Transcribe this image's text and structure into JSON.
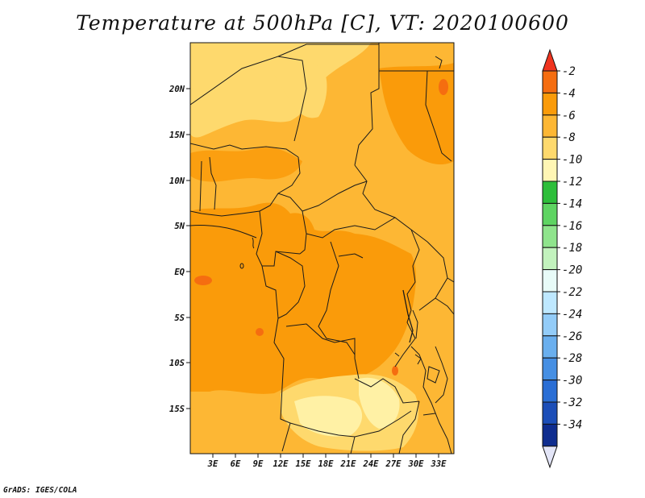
{
  "title": "Temperature at 500hPa [C], VT: 2020100600",
  "credit": "GrADS: IGES/COLA",
  "lat_labels": [
    "20N",
    "15N",
    "10N",
    "5N",
    "EQ",
    "5S",
    "10S",
    "15S"
  ],
  "lon_labels": [
    "3E",
    "6E",
    "9E",
    "12E",
    "15E",
    "18E",
    "21E",
    "24E",
    "27E",
    "30E",
    "33E"
  ],
  "colorbar": {
    "labels": [
      "-2",
      "-4",
      "-6",
      "-8",
      "-10",
      "-12",
      "-14",
      "-16",
      "-18",
      "-20",
      "-22",
      "-24",
      "-26",
      "-28",
      "-30",
      "-32",
      "-34"
    ],
    "colors": [
      "#f0341f",
      "#f56d10",
      "#fa9b0a",
      "#fdb734",
      "#fed96d",
      "#fff6b4",
      "#2dbe3a",
      "#5ed462",
      "#8fe48c",
      "#c2f2bd",
      "#e8fbf8",
      "#bee8ff",
      "#93ccf8",
      "#6aafee",
      "#468fe3",
      "#2a6ed5",
      "#1c4eb8",
      "#0f2d8f",
      "#e3e5f7"
    ]
  },
  "colors": {
    "dominant_fill": "#fdb734",
    "warm_fill": "#fa9b0a",
    "cool_fill": "#fed96d",
    "border": "#1a1a1a"
  }
}
